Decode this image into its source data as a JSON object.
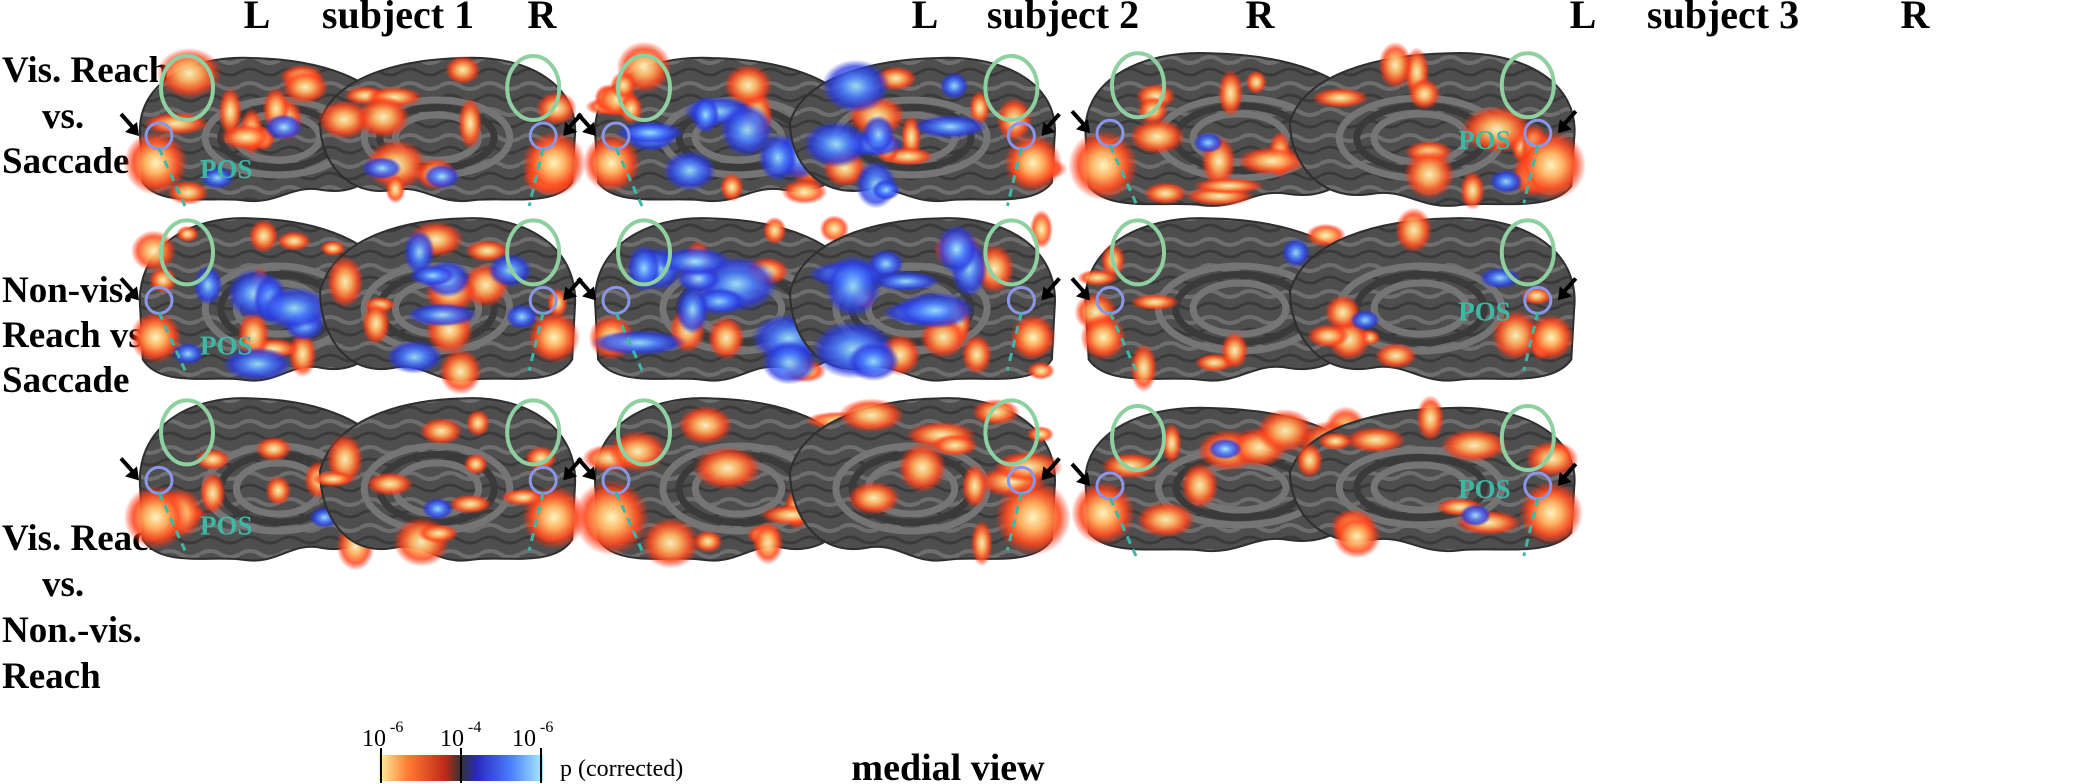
{
  "headers": [
    {
      "left": "L",
      "subject": "subject 1",
      "right": "R"
    },
    {
      "left": "L",
      "subject": "subject 2",
      "right": "R"
    },
    {
      "left": "L",
      "subject": "subject 3",
      "right": "R"
    }
  ],
  "row_labels": [
    [
      "Vis. Reach",
      "vs.",
      "Saccade"
    ],
    [
      "Non-vis.",
      "Reach vs.",
      "Saccade"
    ],
    [
      "Vis. Reach",
      "vs.",
      "Non.-vis.",
      "Reach"
    ]
  ],
  "region_label": "POS",
  "colorbar": {
    "ticks": [
      "10",
      "10",
      "10"
    ],
    "exponents": [
      "-6",
      "-4",
      "-6"
    ],
    "label": "p (corrected)"
  },
  "footer": "medial view",
  "colors": {
    "cortex": "#4e4e4e",
    "sulci": "#3b3b3b",
    "gyri": "#777777",
    "activation_hot": "#ff4a1f",
    "activation_max": "#fff3b8",
    "activation_cold": "#3a58ff",
    "ring_green": "#8fd0a0",
    "ring_blue": "#8c96e6",
    "pos_line": "#3fb7a5"
  }
}
